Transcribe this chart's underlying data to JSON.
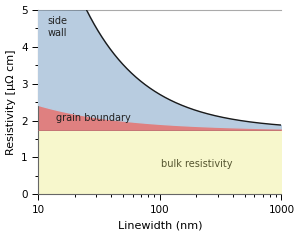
{
  "x_min": 10,
  "x_max": 1000,
  "y_min": 0,
  "y_max": 5,
  "bulk_resistivity": 1.75,
  "color_bulk": "#f7f7cc",
  "color_grain": "#df8080",
  "color_sidewall": "#b8cce0",
  "label_bulk": "bulk resistivity",
  "label_grain": "grain boundary",
  "label_sidewall": "side\nwall",
  "xlabel": "Linewidth (nm)",
  "ylabel": "Resistivity [μΩ cm]",
  "figsize": [
    3.0,
    2.36
  ],
  "dpi": 100,
  "A_grain": 2.8,
  "n_grain": 0.62,
  "A_side": 55.0,
  "n_side": 0.88
}
